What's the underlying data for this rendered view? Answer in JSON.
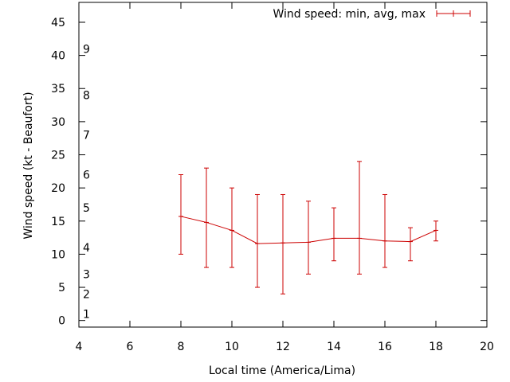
{
  "chart_data": {
    "type": "line",
    "title": "",
    "xlabel": "Local time (America/Lima)",
    "ylabel": "Wind speed (kt - Beaufort)",
    "xlim": [
      4,
      20
    ],
    "ylim": [
      -1,
      48
    ],
    "x_ticks": [
      "4",
      "6",
      "8",
      "10",
      "12",
      "14",
      "16",
      "18",
      "20"
    ],
    "y_ticks": [
      "0",
      "5",
      "10",
      "15",
      "20",
      "25",
      "30",
      "35",
      "40",
      "45"
    ],
    "beaufort_labels": [
      {
        "label": "1",
        "y": 1
      },
      {
        "label": "2",
        "y": 4
      },
      {
        "label": "3",
        "y": 7
      },
      {
        "label": "4",
        "y": 11
      },
      {
        "label": "5",
        "y": 17
      },
      {
        "label": "6",
        "y": 22
      },
      {
        "label": "7",
        "y": 28
      },
      {
        "label": "8",
        "y": 34
      },
      {
        "label": "9",
        "y": 41
      }
    ],
    "legend": {
      "label": "Wind speed: min, avg, max",
      "position": "top-right"
    },
    "grid": false,
    "colors": {
      "series": "#cc0000"
    },
    "series": [
      {
        "name": "Wind speed: min, avg, max",
        "x": [
          8,
          9,
          10,
          11,
          12,
          13,
          14,
          15,
          16,
          17,
          18
        ],
        "avg": [
          15.7,
          14.8,
          13.6,
          11.6,
          11.7,
          11.8,
          12.4,
          12.4,
          12.0,
          11.9,
          13.6
        ],
        "min": [
          10,
          8,
          8,
          5,
          4,
          7,
          9,
          7,
          8,
          9,
          12
        ],
        "max": [
          22,
          23,
          20,
          19,
          19,
          18,
          17,
          24,
          19,
          14,
          15
        ]
      }
    ]
  }
}
